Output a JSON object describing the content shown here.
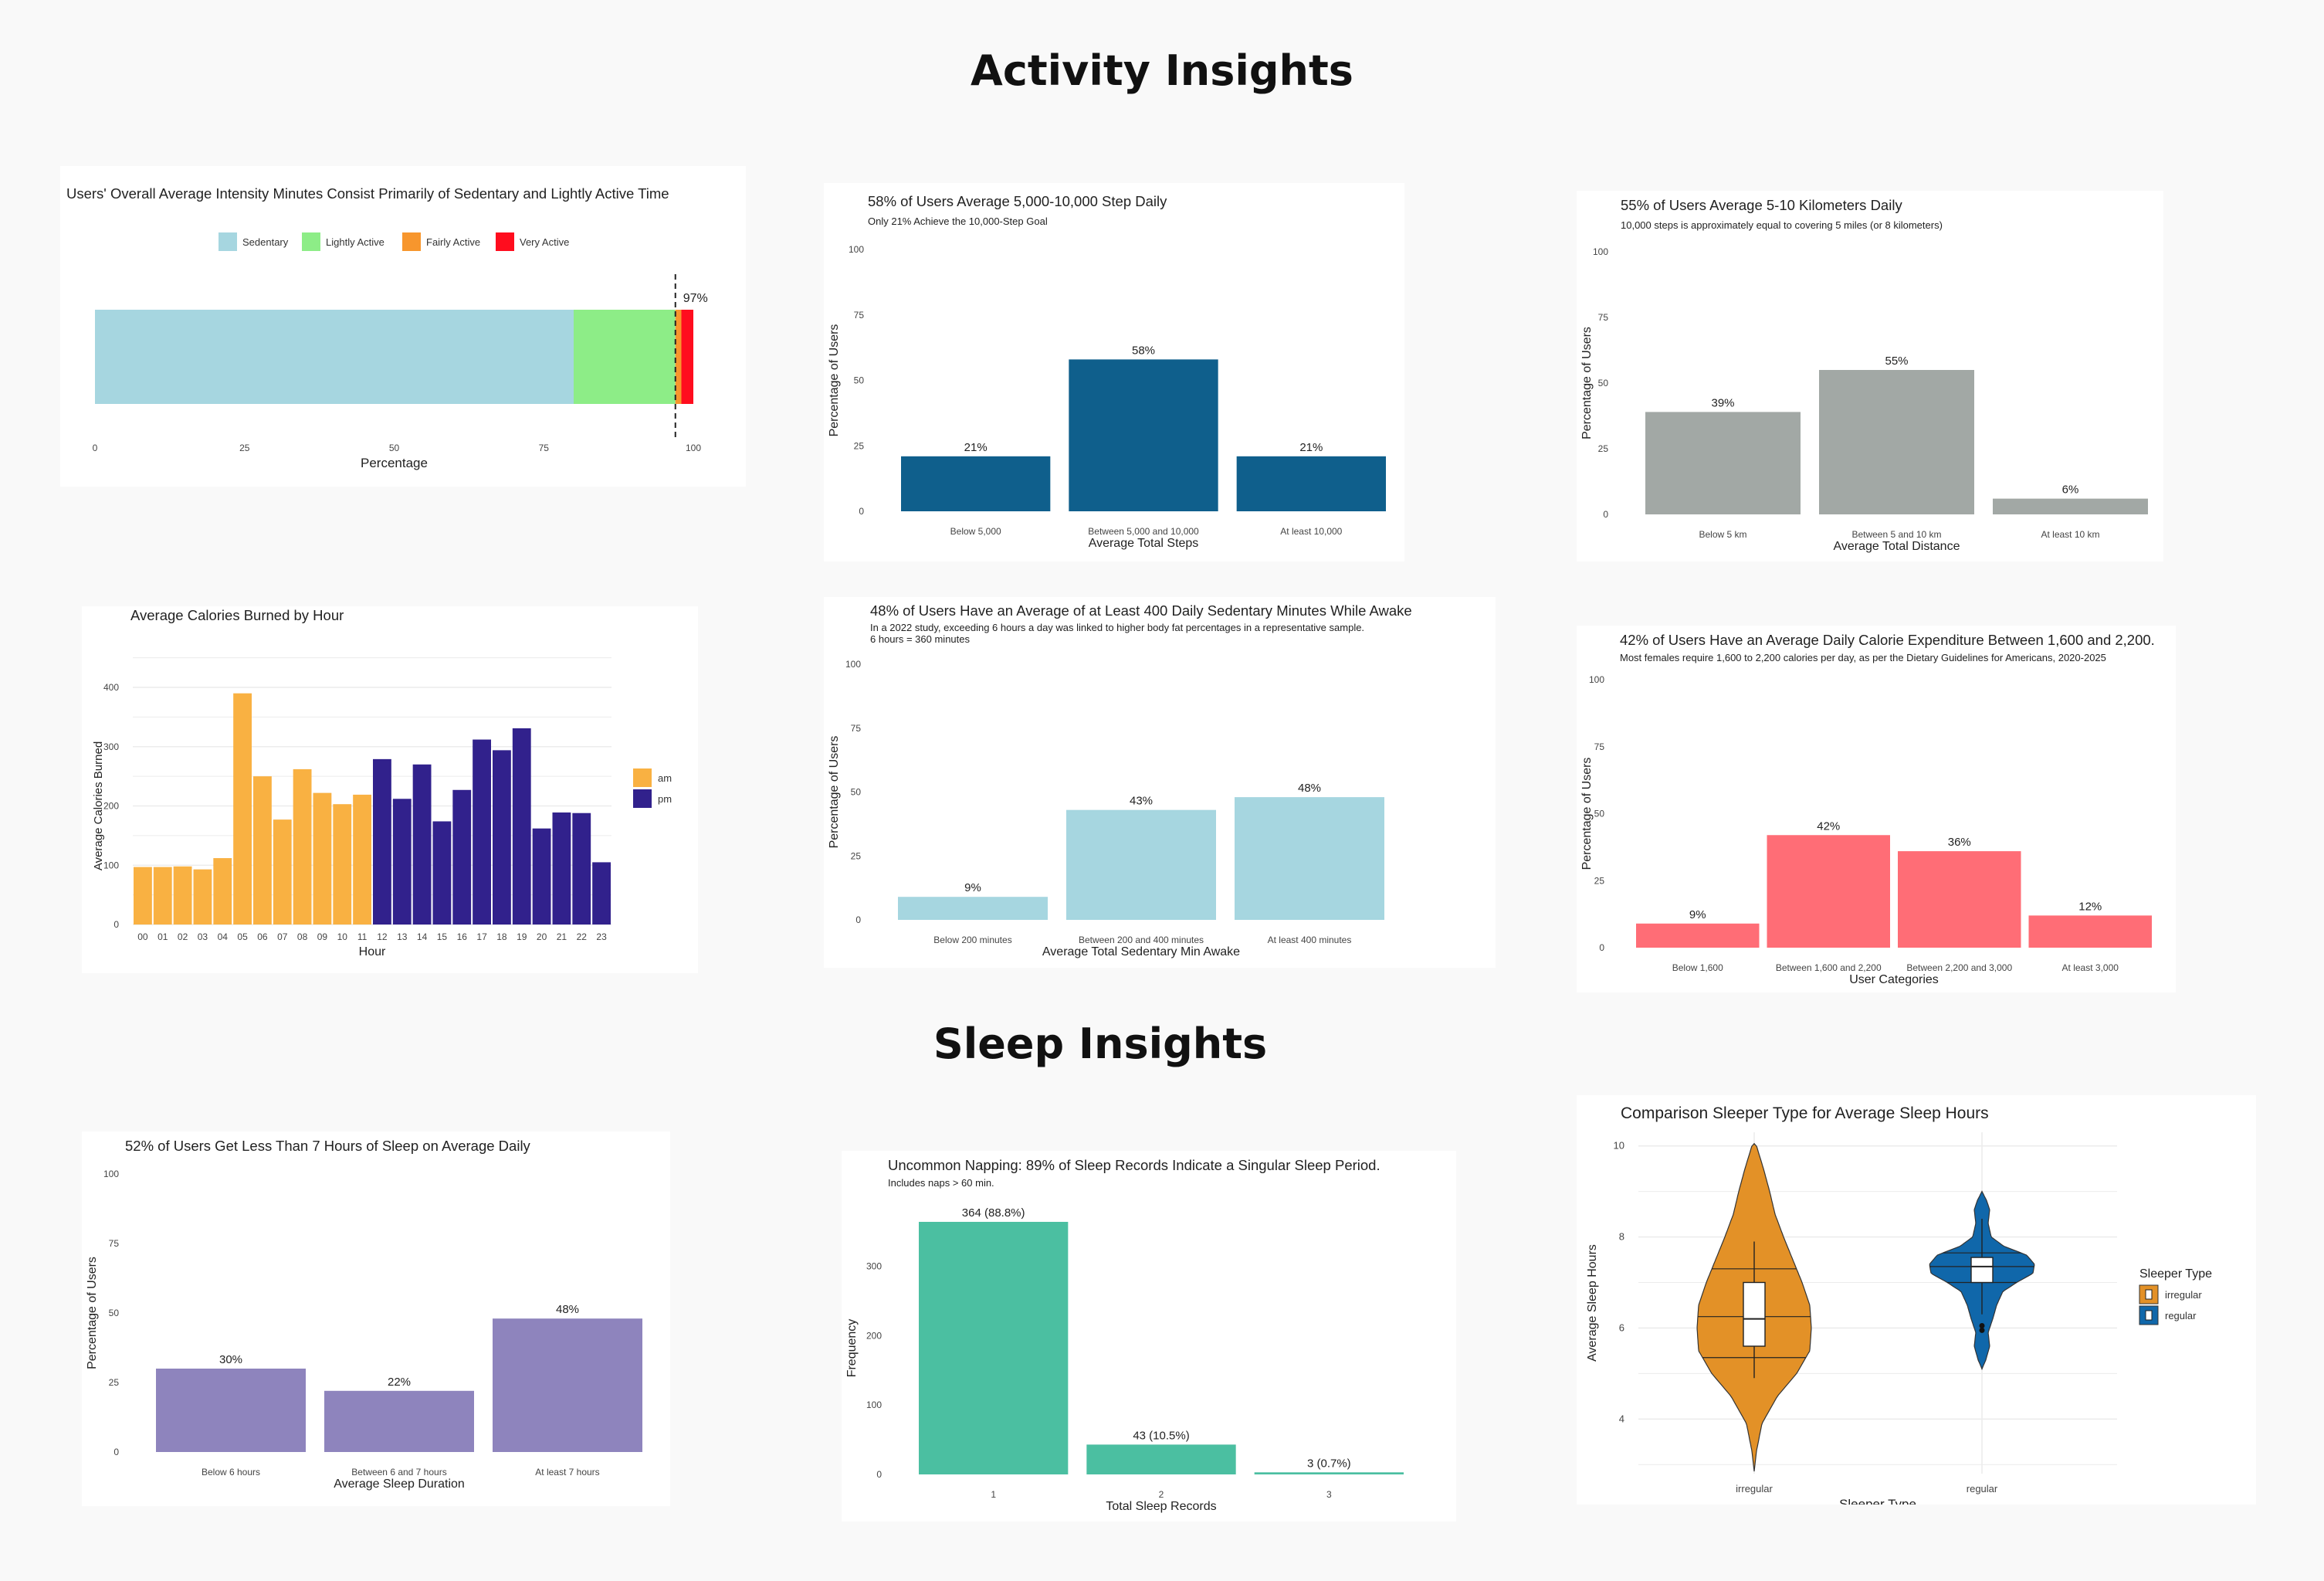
{
  "sections": {
    "activity": "Activity Insights",
    "sleep": "Sleep Insights"
  },
  "chart_data": [
    {
      "id": "intensity",
      "type": "bar",
      "orientation": "horizontal-stacked",
      "title": "Users' Overall Average Intensity Minutes Consist Primarily of Sedentary and Lightly Active Time",
      "xlabel": "Percentage",
      "xlim": [
        0,
        100
      ],
      "xticks": [
        0,
        25,
        50,
        75,
        100
      ],
      "legend_position": "top",
      "series": [
        {
          "name": "Sedentary",
          "value": 80,
          "color": "#a6d6e0"
        },
        {
          "name": "Lightly Active",
          "value": 17,
          "color": "#8ded87"
        },
        {
          "name": "Fairly Active",
          "value": 1,
          "color": "#f7962d"
        },
        {
          "name": "Very Active",
          "value": 2,
          "color": "#ff0d1e"
        }
      ],
      "reference_line": {
        "value": 97,
        "label": "97%"
      }
    },
    {
      "id": "steps",
      "type": "bar",
      "title": "58% of Users Average 5,000-10,000 Step Daily",
      "subtitle": "Only 21% Achieve the 10,000-Step Goal",
      "xlabel": "Average Total Steps",
      "ylabel": "Percentage of Users",
      "ylim": [
        0,
        100
      ],
      "yticks": [
        0,
        25,
        50,
        75,
        100
      ],
      "color": "#0f5f8c",
      "categories": [
        "Below 5,000",
        "Between 5,000 and 10,000",
        "At least 10,000"
      ],
      "values": [
        21,
        58,
        21
      ],
      "labels": [
        "21%",
        "58%",
        "21%"
      ]
    },
    {
      "id": "distance",
      "type": "bar",
      "title": "55% of Users Average 5-10 Kilometers Daily",
      "subtitle": "10,000 steps is approximately equal to covering 5 miles (or 8 kilometers)",
      "xlabel": "Average Total Distance",
      "ylabel": "Percentage of Users",
      "ylim": [
        0,
        100
      ],
      "yticks": [
        0,
        25,
        50,
        75,
        100
      ],
      "color": "#a2a8a5",
      "categories": [
        "Below 5 km",
        "Between 5 and 10 km",
        "At least 10 km"
      ],
      "values": [
        39,
        55,
        6
      ],
      "labels": [
        "39%",
        "55%",
        "6%"
      ]
    },
    {
      "id": "calories_hour",
      "type": "bar",
      "title": "Average Calories Burned by Hour",
      "xlabel": "Hour",
      "ylabel": "Average Calories Burned",
      "ylim": [
        0,
        400
      ],
      "yticks": [
        0,
        100,
        200,
        300,
        400
      ],
      "legend_position": "right",
      "legend": [
        {
          "name": "am",
          "color": "#f9b142"
        },
        {
          "name": "pm",
          "color": "#31218c"
        }
      ],
      "categories": [
        "00",
        "01",
        "02",
        "03",
        "04",
        "05",
        "06",
        "07",
        "08",
        "09",
        "10",
        "11",
        "12",
        "13",
        "14",
        "15",
        "16",
        "17",
        "18",
        "19",
        "20",
        "21",
        "22",
        "23"
      ],
      "values": [
        97,
        97,
        98,
        93,
        112,
        390,
        250,
        177,
        262,
        222,
        203,
        219,
        279,
        212,
        270,
        174,
        227,
        312,
        294,
        331,
        162,
        189,
        188,
        105
      ]
    },
    {
      "id": "sedentary",
      "type": "bar",
      "title": "48% of Users Have an Average of at Least 400 Daily Sedentary Minutes While Awake",
      "subtitle": "In a 2022 study, exceeding 6 hours a day was linked to higher body fat percentages in a representative sample.\n6 hours = 360 minutes",
      "xlabel": "Average Total Sedentary Min Awake",
      "ylabel": "Percentage of Users",
      "ylim": [
        0,
        100
      ],
      "yticks": [
        0,
        25,
        50,
        75,
        100
      ],
      "color": "#a6d6e0",
      "categories": [
        "Below 200 minutes",
        "Between 200 and 400 minutes",
        "At least 400 minutes"
      ],
      "values": [
        9,
        43,
        48
      ],
      "labels": [
        "9%",
        "43%",
        "48%"
      ]
    },
    {
      "id": "calorie_expenditure",
      "type": "bar",
      "title": "42% of Users Have an Average Daily Calorie Expenditure Between 1,600 and 2,200.",
      "subtitle": "Most females require 1,600 to 2,200 calories per day, as per the Dietary Guidelines for Americans, 2020-2025",
      "xlabel": "User Categories",
      "ylabel": "Percentage of Users",
      "ylim": [
        0,
        100
      ],
      "yticks": [
        0,
        25,
        50,
        75,
        100
      ],
      "color": "#ff6d76",
      "categories": [
        "Below 1,600",
        "Between 1,600 and 2,200",
        "Between 2,200 and 3,000",
        "At least 3,000"
      ],
      "values": [
        9,
        42,
        36,
        12
      ],
      "labels": [
        "9%",
        "42%",
        "36%",
        "12%"
      ]
    },
    {
      "id": "sleep_duration",
      "type": "bar",
      "title": "52% of Users Get Less Than 7 Hours of Sleep on Average Daily",
      "xlabel": "Average Sleep Duration",
      "ylabel": "Percentage of Users",
      "ylim": [
        0,
        100
      ],
      "yticks": [
        0,
        25,
        50,
        75,
        100
      ],
      "color": "#8e84bd",
      "categories": [
        "Below 6 hours",
        "Between 6 and 7 hours",
        "At least 7 hours"
      ],
      "values": [
        30,
        22,
        48
      ],
      "labels": [
        "30%",
        "22%",
        "48%"
      ]
    },
    {
      "id": "sleep_records",
      "type": "bar",
      "title": "Uncommon Napping: 89% of Sleep Records Indicate a Singular Sleep Period.",
      "subtitle": "Includes naps > 60 min.",
      "xlabel": "Total Sleep Records",
      "ylabel": "Frequency",
      "ylim": [
        0,
        364
      ],
      "yticks": [
        0,
        100,
        200,
        300
      ],
      "color": "#4bbfa1",
      "categories": [
        "1",
        "2",
        "3"
      ],
      "values": [
        364,
        43,
        3
      ],
      "labels": [
        "364 (88.8%)",
        "43 (10.5%)",
        "3 (0.7%)"
      ]
    },
    {
      "id": "sleeper_type",
      "type": "violin",
      "title": "Comparison Sleeper Type for Average Sleep Hours",
      "xlabel": "Sleeper Type",
      "ylabel": "Average Sleep Hours",
      "ylim": [
        2.8,
        10.3
      ],
      "yticks": [
        4,
        6,
        8,
        10
      ],
      "legend_title": "Sleeper Type",
      "legend_position": "right",
      "series": [
        {
          "name": "irregular",
          "color": "#e39127",
          "min": 2.85,
          "max": 10.05,
          "quantiles": [
            5.35,
            6.25,
            7.3
          ],
          "box": {
            "q1": 5.6,
            "median": 6.2,
            "q3": 7.0,
            "whisker_low": 4.9,
            "whisker_high": 7.9
          },
          "profile": [
            [
              2.85,
              0
            ],
            [
              3.3,
              3
            ],
            [
              3.9,
              10
            ],
            [
              4.5,
              30
            ],
            [
              5.0,
              55
            ],
            [
              5.5,
              72
            ],
            [
              6.0,
              74
            ],
            [
              6.5,
              72
            ],
            [
              7.0,
              62
            ],
            [
              7.5,
              50
            ],
            [
              8.0,
              38
            ],
            [
              8.5,
              27
            ],
            [
              9.0,
              20
            ],
            [
              9.5,
              12
            ],
            [
              10.0,
              3
            ],
            [
              10.05,
              0
            ]
          ],
          "outliers": []
        },
        {
          "name": "regular",
          "color": "#1067aa",
          "min": 5.1,
          "max": 9.0,
          "quantiles": [
            7.0,
            7.35,
            7.65
          ],
          "box": {
            "q1": 7.0,
            "median": 7.35,
            "q3": 7.55,
            "whisker_low": 6.3,
            "whisker_high": 8.4
          },
          "profile": [
            [
              5.1,
              0
            ],
            [
              5.3,
              5
            ],
            [
              5.6,
              10
            ],
            [
              5.9,
              8
            ],
            [
              6.2,
              14
            ],
            [
              6.5,
              19
            ],
            [
              6.8,
              27
            ],
            [
              7.0,
              45
            ],
            [
              7.2,
              66
            ],
            [
              7.4,
              68
            ],
            [
              7.6,
              58
            ],
            [
              7.8,
              28
            ],
            [
              8.0,
              12
            ],
            [
              8.3,
              8
            ],
            [
              8.6,
              10
            ],
            [
              8.8,
              6
            ],
            [
              9.0,
              0
            ]
          ],
          "outliers": [
            5.95,
            6.05
          ]
        }
      ]
    }
  ]
}
